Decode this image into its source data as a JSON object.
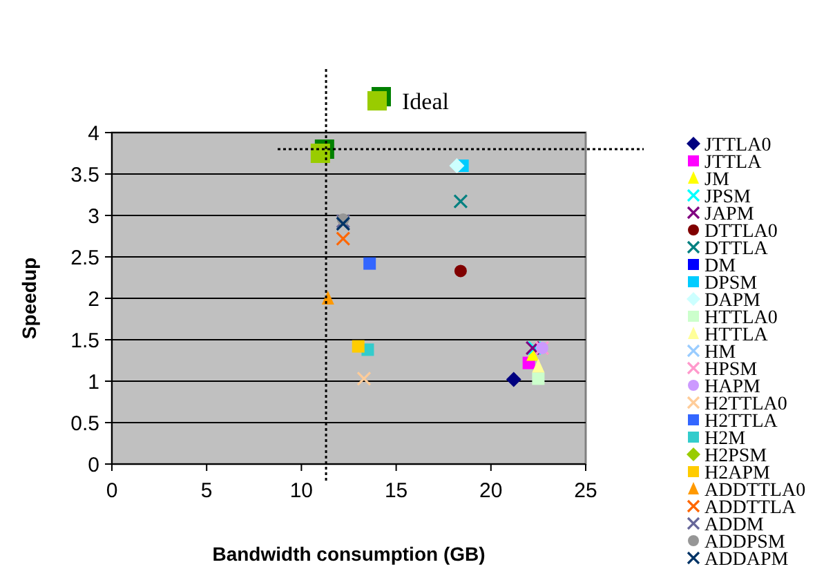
{
  "chart_data": {
    "type": "scatter",
    "xlabel": "Bandwidth consumption (GB)",
    "ylabel": "Speedup",
    "xlim": [
      0,
      25
    ],
    "ylim": [
      0,
      4
    ],
    "xticks": [
      0,
      5,
      10,
      15,
      20,
      25
    ],
    "yticks": [
      0,
      0.5,
      1,
      1.5,
      2,
      2.5,
      3,
      3.5,
      4
    ],
    "grid": "y",
    "legend": "right",
    "ref_lines": [
      {
        "axis": "x",
        "value": 11.3,
        "line_style": "dotted",
        "color": "#000000"
      },
      {
        "axis": "y",
        "value": 3.8,
        "line_style": "dotted",
        "color": "#000000"
      }
    ],
    "series": [
      {
        "name": "JTTLA0",
        "color": "#000080",
        "marker": "diamond",
        "x": [
          21.2
        ],
        "values": [
          1.02
        ]
      },
      {
        "name": "JTTLA",
        "color": "#ff00ff",
        "marker": "square",
        "x": [
          22.0
        ],
        "values": [
          1.22
        ]
      },
      {
        "name": "JM",
        "color": "#ffff00",
        "marker": "triangle",
        "x": [
          22.2
        ],
        "values": [
          1.32
        ]
      },
      {
        "name": "JPSM",
        "color": "#00ffff",
        "marker": "cross",
        "x": [
          22.3
        ],
        "values": [
          1.4
        ]
      },
      {
        "name": "JAPM",
        "color": "#800080",
        "marker": "cross",
        "x": [
          22.2
        ],
        "values": [
          1.4
        ]
      },
      {
        "name": "DTTLA0",
        "color": "#800000",
        "marker": "circle",
        "x": [
          18.4
        ],
        "values": [
          2.33
        ]
      },
      {
        "name": "DTTLA",
        "color": "#008080",
        "marker": "cross",
        "x": [
          18.4
        ],
        "values": [
          3.17
        ]
      },
      {
        "name": "DM",
        "color": "#0000ff",
        "marker": "square",
        "x": [
          null
        ],
        "values": [
          null
        ]
      },
      {
        "name": "DPSM",
        "color": "#00ccff",
        "marker": "square",
        "x": [
          18.5
        ],
        "values": [
          3.6
        ]
      },
      {
        "name": "DAPM",
        "color": "#ccffff",
        "marker": "diamond",
        "x": [
          18.2
        ],
        "values": [
          3.6
        ]
      },
      {
        "name": "HTTLA0",
        "color": "#ccffcc",
        "marker": "square",
        "x": [
          22.5
        ],
        "values": [
          1.03
        ]
      },
      {
        "name": "HTTLA",
        "color": "#ffff99",
        "marker": "triangle",
        "x": [
          22.5
        ],
        "values": [
          1.18
        ]
      },
      {
        "name": "HM",
        "color": "#99ccff",
        "marker": "cross",
        "x": [
          null
        ],
        "values": [
          null
        ]
      },
      {
        "name": "HPSM",
        "color": "#ff99cc",
        "marker": "cross",
        "x": [
          22.7
        ],
        "values": [
          1.4
        ]
      },
      {
        "name": "HAPM",
        "color": "#cc99ff",
        "marker": "circle",
        "x": [
          22.7
        ],
        "values": [
          1.4
        ]
      },
      {
        "name": "H2TTLA0",
        "color": "#ffcc99",
        "marker": "cross",
        "x": [
          13.3
        ],
        "values": [
          1.03
        ]
      },
      {
        "name": "H2TTLA",
        "color": "#3366ff",
        "marker": "square",
        "x": [
          13.6
        ],
        "values": [
          2.42
        ]
      },
      {
        "name": "H2M",
        "color": "#33cccc",
        "marker": "square",
        "x": [
          13.5
        ],
        "values": [
          1.38
        ]
      },
      {
        "name": "H2PSM",
        "color": "#99cc00",
        "marker": "diamond",
        "x": [
          null
        ],
        "values": [
          null
        ]
      },
      {
        "name": "H2APM",
        "color": "#ffcc00",
        "marker": "square",
        "x": [
          13.0
        ],
        "values": [
          1.42
        ]
      },
      {
        "name": "ADDTTLA0",
        "color": "#ff9900",
        "marker": "triangle",
        "x": [
          11.4
        ],
        "values": [
          2.0
        ]
      },
      {
        "name": "ADDTTLA",
        "color": "#ff6600",
        "marker": "cross",
        "x": [
          12.2
        ],
        "values": [
          2.72
        ]
      },
      {
        "name": "ADDM",
        "color": "#666699",
        "marker": "cross",
        "x": [
          12.2
        ],
        "values": [
          2.93
        ]
      },
      {
        "name": "ADDPSM",
        "color": "#969696",
        "marker": "circle",
        "x": [
          12.2
        ],
        "values": [
          2.95
        ]
      },
      {
        "name": "ADDAPM",
        "color": "#003366",
        "marker": "cross",
        "x": [
          12.2
        ],
        "values": [
          2.9
        ]
      },
      {
        "name": "Ideal",
        "color": "#99cc00",
        "marker": "square",
        "x": [
          11.0
        ],
        "values": [
          3.75
        ]
      }
    ]
  }
}
